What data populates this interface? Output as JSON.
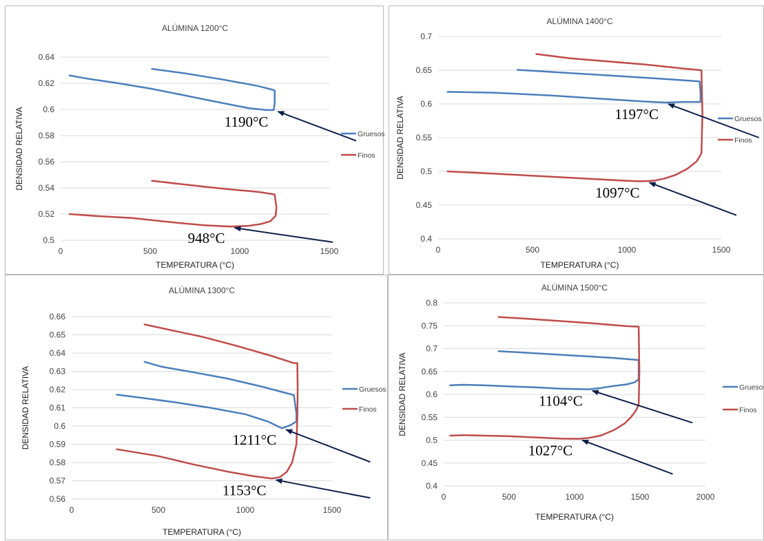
{
  "chart_data": [
    {
      "type": "line",
      "title": "ALÚMINA 1200°C",
      "xlabel": "TEMPERATURA (°C)",
      "ylabel": "DENSIDAD RELATIVA",
      "xlim": [
        0,
        1500
      ],
      "ylim": [
        0.5,
        0.64
      ],
      "xticks": [
        "0",
        "500",
        "1000",
        "1500"
      ],
      "yticks": [
        "0.5",
        "0.52",
        "0.54",
        "0.56",
        "0.58",
        "0.6",
        "0.62",
        "0.64"
      ],
      "grid": "horizontal",
      "legend_position": "right",
      "series": [
        {
          "name": "Gruesos",
          "color": "#4a7ebb",
          "x": [
            50,
            150,
            300,
            500,
            700,
            900,
            1050,
            1150,
            1190,
            1195,
            1195,
            1185,
            1100,
            900,
            700,
            510
          ],
          "y": [
            0.626,
            0.6235,
            0.6205,
            0.616,
            0.6105,
            0.605,
            0.601,
            0.5995,
            0.5995,
            0.605,
            0.6145,
            0.615,
            0.618,
            0.623,
            0.6275,
            0.631
          ]
        },
        {
          "name": "Finos",
          "color": "#be4b48",
          "x": [
            50,
            200,
            400,
            600,
            800,
            948,
            1050,
            1120,
            1170,
            1200,
            1205,
            1195,
            1100,
            900,
            700,
            510
          ],
          "y": [
            0.52,
            0.5185,
            0.517,
            0.514,
            0.5115,
            0.5105,
            0.511,
            0.5125,
            0.5145,
            0.5185,
            0.525,
            0.535,
            0.537,
            0.5395,
            0.5425,
            0.5455
          ]
        }
      ],
      "annotations": [
        {
          "label": "1190°C",
          "x": 1190,
          "y": 0.5995,
          "from": [
            1650,
            0.576
          ]
        },
        {
          "label": "948°C",
          "x": 948,
          "y": 0.5105,
          "from": [
            1520,
            0.4985
          ]
        }
      ]
    },
    {
      "type": "line",
      "title": "ALÚMINA 1400°C",
      "xlabel": "TEMPERATURA (°C)",
      "ylabel": "DENSIDAD RELATIVA",
      "xlim": [
        0,
        1500
      ],
      "ylim": [
        0.4,
        0.7
      ],
      "xticks": [
        "0",
        "500",
        "1000",
        "1500"
      ],
      "yticks": [
        "0.4",
        "0.45",
        "0.5",
        "0.55",
        "0.6",
        "0.65",
        "0.7"
      ],
      "grid": "horizontal",
      "legend_position": "right",
      "series": [
        {
          "name": "Gruesos",
          "color": "#4a7ebb",
          "x": [
            50,
            300,
            600,
            900,
            1100,
            1200,
            1300,
            1390,
            1390,
            1385,
            1200,
            1000,
            800,
            600,
            420
          ],
          "y": [
            0.618,
            0.6165,
            0.6125,
            0.607,
            0.6035,
            0.602,
            0.603,
            0.603,
            0.617,
            0.6335,
            0.637,
            0.6405,
            0.644,
            0.6475,
            0.6505
          ]
        },
        {
          "name": "Finos",
          "color": "#be4b48",
          "x": [
            50,
            300,
            600,
            900,
            1050,
            1097,
            1150,
            1200,
            1260,
            1320,
            1370,
            1395,
            1400,
            1395,
            1300,
            1100,
            900,
            700,
            520
          ],
          "y": [
            0.5,
            0.4965,
            0.492,
            0.4875,
            0.4855,
            0.4855,
            0.4865,
            0.4895,
            0.495,
            0.504,
            0.515,
            0.527,
            0.585,
            0.65,
            0.6525,
            0.6585,
            0.663,
            0.6675,
            0.674
          ]
        }
      ],
      "annotations": [
        {
          "label": "1197°C",
          "x": 1197,
          "y": 0.602,
          "from": [
            1700,
            0.55
          ]
        },
        {
          "label": "1097°C",
          "x": 1097,
          "y": 0.4855,
          "from": [
            1580,
            0.435
          ]
        }
      ]
    },
    {
      "type": "line",
      "title": "ALÚMINA 1300°C",
      "xlabel": "TEMPERATURA (°C)",
      "ylabel": "DENSIDAD RELATIVA",
      "xlim": [
        0,
        1500
      ],
      "ylim": [
        0.56,
        0.66
      ],
      "xticks": [
        "0",
        "500",
        "1000",
        "1500"
      ],
      "yticks": [
        "0.56",
        "0.57",
        "0.58",
        "0.59",
        "0.6",
        "0.61",
        "0.62",
        "0.63",
        "0.64",
        "0.65",
        "0.66"
      ],
      "grid": "horizontal",
      "legend_position": "right",
      "series": [
        {
          "name": "Gruesos",
          "color": "#4a7ebb",
          "x": [
            260,
            400,
            600,
            800,
            1000,
            1130,
            1211,
            1260,
            1295,
            1295,
            1280,
            1100,
            900,
            700,
            520,
            420
          ],
          "y": [
            0.6172,
            0.6155,
            0.613,
            0.61,
            0.6065,
            0.6025,
            0.5988,
            0.6005,
            0.6025,
            0.607,
            0.617,
            0.6215,
            0.626,
            0.6295,
            0.6325,
            0.6352
          ]
        },
        {
          "name": "Finos",
          "color": "#be4b48",
          "x": [
            260,
            500,
            700,
            900,
            1050,
            1153,
            1200,
            1240,
            1270,
            1295,
            1300,
            1302,
            1300,
            1280,
            1150,
            950,
            750,
            600,
            420
          ],
          "y": [
            0.5873,
            0.5835,
            0.579,
            0.575,
            0.5725,
            0.5712,
            0.572,
            0.575,
            0.58,
            0.59,
            0.605,
            0.62,
            0.6345,
            0.6345,
            0.6385,
            0.644,
            0.649,
            0.652,
            0.6557
          ]
        }
      ],
      "annotations": [
        {
          "label": "1211°C",
          "x": 1211,
          "y": 0.5988,
          "from": [
            1720,
            0.5803
          ]
        },
        {
          "label": "1153°C",
          "x": 1153,
          "y": 0.5712,
          "from": [
            1720,
            0.5606
          ]
        }
      ]
    },
    {
      "type": "line",
      "title": "ALÚMINA 1500°C",
      "xlabel": "TEMPERATURA  (°C)",
      "ylabel": "DENSIDAD RELATIVA",
      "xlim": [
        0,
        2000
      ],
      "ylim": [
        0.4,
        0.8
      ],
      "xticks": [
        "0",
        "500",
        "1000",
        "1500",
        "2000"
      ],
      "yticks": [
        "0.4",
        "0.45",
        "0.5",
        "0.55",
        "0.6",
        "0.65",
        "0.7",
        "0.75",
        "0.8"
      ],
      "grid": "horizontal",
      "legend_position": "right",
      "series": [
        {
          "name": "Gruesos",
          "color": "#4a7ebb",
          "x": [
            50,
            150,
            300,
            500,
            700,
            900,
            1050,
            1104,
            1200,
            1300,
            1400,
            1460,
            1490,
            1490,
            1470,
            1300,
            1100,
            900,
            700,
            420
          ],
          "y": [
            0.62,
            0.621,
            0.62,
            0.6175,
            0.6155,
            0.6125,
            0.6115,
            0.6112,
            0.614,
            0.6185,
            0.622,
            0.6265,
            0.633,
            0.675,
            0.6755,
            0.6795,
            0.683,
            0.6865,
            0.69,
            0.6945
          ]
        },
        {
          "name": "Finos",
          "color": "#be4b48",
          "x": [
            50,
            150,
            300,
            500,
            700,
            900,
            1027,
            1100,
            1200,
            1300,
            1380,
            1430,
            1470,
            1490,
            1495,
            1490,
            1400,
            1200,
            1000,
            800,
            600,
            420
          ],
          "y": [
            0.51,
            0.511,
            0.51,
            0.5085,
            0.506,
            0.5035,
            0.503,
            0.5045,
            0.51,
            0.522,
            0.536,
            0.55,
            0.565,
            0.578,
            0.65,
            0.748,
            0.749,
            0.754,
            0.758,
            0.762,
            0.766,
            0.769
          ]
        }
      ],
      "annotations": [
        {
          "label": "1104°C",
          "x": 1104,
          "y": 0.6112,
          "from": [
            1900,
            0.538
          ]
        },
        {
          "label": "1027°C",
          "x": 1027,
          "y": 0.503,
          "from": [
            1750,
            0.426
          ]
        }
      ]
    }
  ]
}
